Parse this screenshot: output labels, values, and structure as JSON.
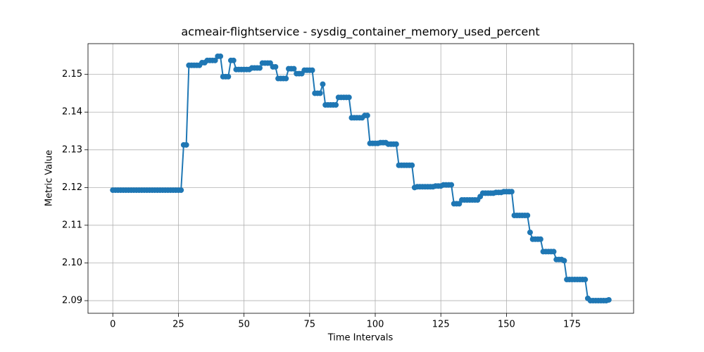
{
  "chart_data": {
    "type": "line",
    "title": "acmeair-flightservice - sysdig_container_memory_used_percent",
    "x_label": "Time Intervals",
    "y_label": "Metric Value",
    "grid": true,
    "xlim": [
      -9.45,
      198.45
    ],
    "ylim": [
      2.08665,
      2.15815
    ],
    "xticks": [
      0,
      25,
      50,
      75,
      100,
      125,
      150,
      175
    ],
    "yticks": [
      2.09,
      {
        "value": 2.1,
        "label": "2.10"
      },
      2.11,
      2.12,
      2.13,
      2.14,
      2.15
    ],
    "x": [
      0,
      1,
      2,
      3,
      4,
      5,
      6,
      7,
      8,
      9,
      10,
      11,
      12,
      13,
      14,
      15,
      16,
      17,
      18,
      19,
      20,
      21,
      22,
      23,
      24,
      25,
      26,
      27,
      28,
      29,
      30,
      31,
      32,
      33,
      34,
      35,
      36,
      37,
      38,
      39,
      40,
      41,
      42,
      43,
      44,
      45,
      46,
      47,
      48,
      49,
      50,
      51,
      52,
      53,
      54,
      55,
      56,
      57,
      58,
      59,
      60,
      61,
      62,
      63,
      64,
      65,
      66,
      67,
      68,
      69,
      70,
      71,
      72,
      73,
      74,
      75,
      76,
      77,
      78,
      79,
      80,
      81,
      82,
      83,
      84,
      85,
      86,
      87,
      88,
      89,
      90,
      91,
      92,
      93,
      94,
      95,
      96,
      97,
      98,
      99,
      100,
      101,
      102,
      103,
      104,
      105,
      106,
      107,
      108,
      109,
      110,
      111,
      112,
      113,
      114,
      115,
      116,
      117,
      118,
      119,
      120,
      121,
      122,
      123,
      124,
      125,
      126,
      127,
      128,
      129,
      130,
      131,
      132,
      133,
      134,
      135,
      136,
      137,
      138,
      139,
      140,
      141,
      142,
      143,
      144,
      145,
      146,
      147,
      148,
      149,
      150,
      151,
      152,
      153,
      154,
      155,
      156,
      157,
      158,
      159,
      160,
      161,
      162,
      163,
      164,
      165,
      166,
      167,
      168,
      169,
      170,
      171,
      172,
      173,
      174,
      175,
      176,
      177,
      178,
      179,
      180,
      181,
      182,
      183,
      184,
      185,
      186,
      187,
      188,
      189
    ],
    "series": [
      {
        "color": "#1f77b4",
        "values": [
          2.1193,
          2.1193,
          2.1193,
          2.1193,
          2.1193,
          2.1193,
          2.1193,
          2.1193,
          2.1193,
          2.1193,
          2.1193,
          2.1193,
          2.1193,
          2.1193,
          2.1193,
          2.1193,
          2.1193,
          2.1193,
          2.1193,
          2.1193,
          2.1193,
          2.1193,
          2.1193,
          2.1193,
          2.1193,
          2.1193,
          2.1193,
          2.1313,
          2.1313,
          2.1524,
          2.1524,
          2.1524,
          2.1524,
          2.1524,
          2.1531,
          2.1531,
          2.1537,
          2.1537,
          2.1537,
          2.1537,
          2.1548,
          2.1548,
          2.1494,
          2.1494,
          2.1494,
          2.1537,
          2.1537,
          2.1513,
          2.1513,
          2.1513,
          2.1513,
          2.1513,
          2.1513,
          2.1517,
          2.1517,
          2.1517,
          2.1517,
          2.153,
          2.153,
          2.153,
          2.153,
          2.152,
          2.152,
          2.1489,
          2.1489,
          2.1489,
          2.1489,
          2.1515,
          2.1515,
          2.1515,
          2.1502,
          2.1502,
          2.1502,
          2.1511,
          2.1511,
          2.1511,
          2.1511,
          2.145,
          2.145,
          2.145,
          2.1474,
          2.1419,
          2.1419,
          2.1419,
          2.1419,
          2.1419,
          2.1439,
          2.1439,
          2.1439,
          2.1439,
          2.1439,
          2.1385,
          2.1385,
          2.1385,
          2.1385,
          2.1385,
          2.1391,
          2.1391,
          2.1317,
          2.1317,
          2.1317,
          2.1317,
          2.1319,
          2.1319,
          2.1319,
          2.1315,
          2.1315,
          2.1315,
          2.1315,
          2.1259,
          2.1259,
          2.1259,
          2.1259,
          2.1259,
          2.1259,
          2.12,
          2.1202,
          2.1202,
          2.1202,
          2.1202,
          2.1202,
          2.1202,
          2.1202,
          2.1204,
          2.1204,
          2.1204,
          2.1207,
          2.1207,
          2.1207,
          2.1207,
          2.1157,
          2.1157,
          2.1157,
          2.1167,
          2.1167,
          2.1167,
          2.1167,
          2.1167,
          2.1167,
          2.1167,
          2.1176,
          2.1185,
          2.1185,
          2.1185,
          2.1185,
          2.1185,
          2.1187,
          2.1187,
          2.1187,
          2.1189,
          2.1189,
          2.1189,
          2.1189,
          2.1126,
          2.1126,
          2.1126,
          2.1126,
          2.1126,
          2.1126,
          2.1081,
          2.1063,
          2.1063,
          2.1063,
          2.1063,
          2.103,
          2.103,
          2.103,
          2.103,
          2.103,
          2.1009,
          2.1009,
          2.1009,
          2.1006,
          2.0956,
          2.0956,
          2.0956,
          2.0956,
          2.0956,
          2.0956,
          2.0956,
          2.0956,
          2.0906,
          2.09,
          2.09,
          2.09,
          2.09,
          2.09,
          2.09,
          2.09,
          2.0902
        ]
      }
    ]
  }
}
